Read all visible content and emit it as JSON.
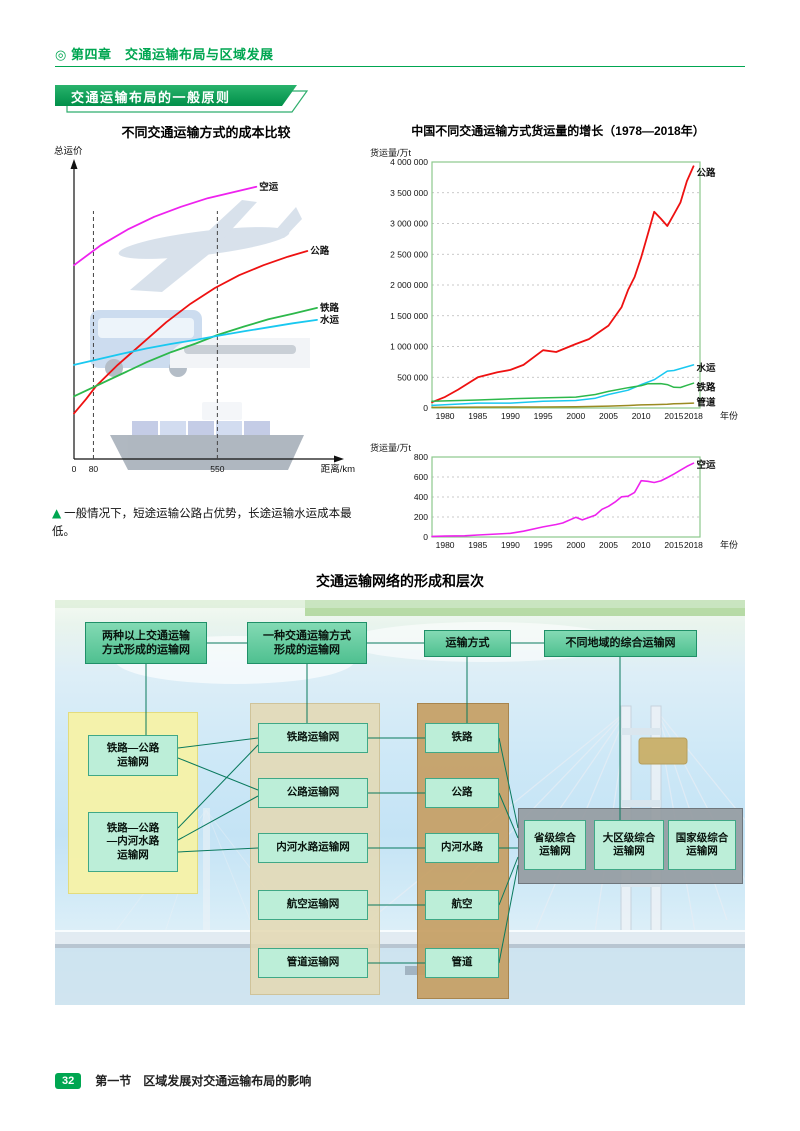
{
  "header": {
    "chapter": "◎ 第四章　交通运输布局与区域发展",
    "banner": "交通运输布局的一般原则"
  },
  "footer": {
    "page_number": "32",
    "text": "第一节　区域发展对交通运输布局的影响"
  },
  "colors": {
    "theme_green": "#00a651",
    "air": "#ee22ee",
    "road": "#ee1111",
    "rail": "#2db84b",
    "water": "#19c8f0",
    "pipeline": "#9b8b22"
  },
  "chart_data": [
    {
      "id": "cost_comparison",
      "type": "line",
      "title": "不同交通运输方式的成本比较",
      "ylabel": "总运价",
      "xlabel": "距离/km",
      "xlim": [
        0,
        100
      ],
      "ylim": [
        0,
        100
      ],
      "axes": "arrow",
      "x_ticks": [
        {
          "value": 0,
          "label": "0"
        },
        {
          "value": 8,
          "label": "80"
        },
        {
          "value": 59,
          "label": "550"
        }
      ],
      "dashed_x": [
        {
          "x": 8,
          "top": 87
        },
        {
          "x": 59,
          "top": 87
        }
      ],
      "series": [
        {
          "name": "空运",
          "color": "#ee22ee",
          "width": 1.8,
          "points": [
            [
              0,
              68
            ],
            [
              11,
              75
            ],
            [
              22,
              80.5
            ],
            [
              33,
              85
            ],
            [
              44,
              88.5
            ],
            [
              55,
              91.5
            ],
            [
              65,
              93.5
            ],
            [
              75,
              95.5
            ]
          ]
        },
        {
          "name": "公路",
          "color": "#ee1111",
          "width": 1.8,
          "points": [
            [
              0,
              16
            ],
            [
              5,
              21
            ],
            [
              9,
              25.5
            ],
            [
              18,
              33
            ],
            [
              28,
              40.5
            ],
            [
              38,
              48
            ],
            [
              48,
              54.5
            ],
            [
              58,
              60
            ],
            [
              68,
              64.5
            ],
            [
              78,
              68
            ],
            [
              88,
              71
            ],
            [
              96,
              73
            ]
          ]
        },
        {
          "name": "铁路",
          "color": "#2db84b",
          "width": 1.8,
          "points": [
            [
              0,
              22
            ],
            [
              10,
              26
            ],
            [
              20,
              30
            ],
            [
              30,
              34
            ],
            [
              40,
              37.5
            ],
            [
              50,
              40.5
            ],
            [
              59,
              43.5
            ],
            [
              70,
              46.5
            ],
            [
              80,
              49
            ],
            [
              90,
              51
            ],
            [
              100,
              53
            ]
          ]
        },
        {
          "name": "水运",
          "color": "#19c8f0",
          "width": 1.8,
          "points": [
            [
              0,
              33
            ],
            [
              10,
              35
            ],
            [
              20,
              37
            ],
            [
              30,
              38.8
            ],
            [
              40,
              40.4
            ],
            [
              50,
              41.8
            ],
            [
              59,
              43.2
            ],
            [
              70,
              44.8
            ],
            [
              80,
              46.2
            ],
            [
              90,
              47.6
            ],
            [
              100,
              48.8
            ]
          ]
        }
      ],
      "note_marker": "▲",
      "note": "一般情况下，短途运输公路占优势，长途运输水运成本最低。"
    },
    {
      "id": "freight_growth",
      "type": "line",
      "title": "中国不同交通运输方式货运量的增长（1978—2018年）",
      "ylabel": "货运量/万t",
      "xlabel": "年份",
      "xlim": [
        1978,
        2019
      ],
      "ylim": [
        0,
        4000000
      ],
      "frame": true,
      "grid": "dotted-horizontal",
      "y_ticks": [
        {
          "value": 4000000,
          "label": "4 000 000"
        },
        {
          "value": 3500000,
          "label": "3 500 000"
        },
        {
          "value": 3000000,
          "label": "3 000 000"
        },
        {
          "value": 2500000,
          "label": "2 500 000"
        },
        {
          "value": 2000000,
          "label": "2 000 000"
        },
        {
          "value": 1500000,
          "label": "1 500 000"
        },
        {
          "value": 1000000,
          "label": "1 000 000"
        },
        {
          "value": 500000,
          "label": "500 000"
        },
        {
          "value": 0,
          "label": "0"
        }
      ],
      "x_ticks": [
        {
          "value": 1980,
          "label": "1980"
        },
        {
          "value": 1985,
          "label": "1985"
        },
        {
          "value": 1990,
          "label": "1990"
        },
        {
          "value": 1995,
          "label": "1995"
        },
        {
          "value": 2000,
          "label": "2000"
        },
        {
          "value": 2005,
          "label": "2005"
        },
        {
          "value": 2010,
          "label": "2010"
        },
        {
          "value": 2015,
          "label": "2015"
        },
        {
          "value": 2018,
          "label": "2018"
        }
      ],
      "series": [
        {
          "name": "公路",
          "color": "#ee1111",
          "width": 1.8,
          "label_y": 3820000,
          "points": [
            [
              1978,
              95000
            ],
            [
              1980,
              180000
            ],
            [
              1982,
              300000
            ],
            [
              1985,
              500000
            ],
            [
              1988,
              580000
            ],
            [
              1990,
              620000
            ],
            [
              1992,
              700000
            ],
            [
              1995,
              940000
            ],
            [
              1997,
              910000
            ],
            [
              2000,
              1040000
            ],
            [
              2002,
              1120000
            ],
            [
              2005,
              1340000
            ],
            [
              2007,
              1640000
            ],
            [
              2008,
              1920000
            ],
            [
              2009,
              2130000
            ],
            [
              2010,
              2450000
            ],
            [
              2011,
              2820000
            ],
            [
              2012,
              3190000
            ],
            [
              2013,
              3080000
            ],
            [
              2014,
              2960000
            ],
            [
              2015,
              3150000
            ],
            [
              2016,
              3340000
            ],
            [
              2017,
              3690000
            ],
            [
              2018,
              3930000
            ]
          ]
        },
        {
          "name": "水运",
          "color": "#19c8f0",
          "width": 1.5,
          "label_y": 650000,
          "points": [
            [
              1978,
              43000
            ],
            [
              1985,
              80000
            ],
            [
              1990,
              80000
            ],
            [
              1995,
              110000
            ],
            [
              2000,
              122000
            ],
            [
              2003,
              160000
            ],
            [
              2005,
              220000
            ],
            [
              2008,
              290000
            ],
            [
              2010,
              380000
            ],
            [
              2012,
              460000
            ],
            [
              2014,
              600000
            ],
            [
              2015,
              610000
            ],
            [
              2016,
              640000
            ],
            [
              2018,
              700000
            ]
          ]
        },
        {
          "name": "铁路",
          "color": "#2db84b",
          "width": 1.5,
          "label_y": 330000,
          "points": [
            [
              1978,
              110000
            ],
            [
              1985,
              130000
            ],
            [
              1990,
              150000
            ],
            [
              1995,
              165000
            ],
            [
              2000,
              178000
            ],
            [
              2003,
              220000
            ],
            [
              2005,
              270000
            ],
            [
              2008,
              330000
            ],
            [
              2010,
              364000
            ],
            [
              2011,
              393000
            ],
            [
              2013,
              397000
            ],
            [
              2014,
              381000
            ],
            [
              2015,
              336000
            ],
            [
              2016,
              333000
            ],
            [
              2017,
              369000
            ],
            [
              2018,
              403000
            ]
          ]
        },
        {
          "name": "管道",
          "color": "#9b8b22",
          "width": 1.5,
          "label_y": 90000,
          "points": [
            [
              1978,
              10000
            ],
            [
              1985,
              14000
            ],
            [
              1990,
              16000
            ],
            [
              1995,
              17000
            ],
            [
              2000,
              19000
            ],
            [
              2005,
              31000
            ],
            [
              2008,
              40000
            ],
            [
              2010,
              50000
            ],
            [
              2012,
              55000
            ],
            [
              2014,
              60000
            ],
            [
              2015,
              68000
            ],
            [
              2016,
              71000
            ],
            [
              2018,
              80000
            ]
          ]
        }
      ]
    },
    {
      "id": "air_growth",
      "type": "line",
      "ylabel": "货运量/万t",
      "xlabel": "年份",
      "xlim": [
        1978,
        2019
      ],
      "ylim": [
        0,
        800
      ],
      "frame": true,
      "grid": "dotted-horizontal",
      "y_ticks": [
        {
          "value": 800,
          "label": "800"
        },
        {
          "value": 600,
          "label": "600"
        },
        {
          "value": 400,
          "label": "400"
        },
        {
          "value": 200,
          "label": "200"
        },
        {
          "value": 0,
          "label": "0"
        }
      ],
      "x_ticks": [
        {
          "value": 1980,
          "label": "1980"
        },
        {
          "value": 1985,
          "label": "1985"
        },
        {
          "value": 1990,
          "label": "1990"
        },
        {
          "value": 1995,
          "label": "1995"
        },
        {
          "value": 2000,
          "label": "2000"
        },
        {
          "value": 2005,
          "label": "2005"
        },
        {
          "value": 2010,
          "label": "2010"
        },
        {
          "value": 2015,
          "label": "2015"
        },
        {
          "value": 2018,
          "label": "2018"
        }
      ],
      "series": [
        {
          "name": "空运",
          "color": "#ee22ee",
          "width": 1.6,
          "label_y": 720,
          "points": [
            [
              1978,
              6
            ],
            [
              1980,
              9
            ],
            [
              1983,
              12
            ],
            [
              1985,
              20
            ],
            [
              1988,
              30
            ],
            [
              1990,
              37
            ],
            [
              1992,
              58
            ],
            [
              1995,
              101
            ],
            [
              1997,
              125
            ],
            [
              1998,
              140
            ],
            [
              2000,
              197
            ],
            [
              2001,
              171
            ],
            [
              2003,
              219
            ],
            [
              2004,
              277
            ],
            [
              2005,
              307
            ],
            [
              2006,
              349
            ],
            [
              2007,
              402
            ],
            [
              2008,
              408
            ],
            [
              2009,
              446
            ],
            [
              2010,
              563
            ],
            [
              2011,
              557
            ],
            [
              2012,
              545
            ],
            [
              2013,
              561
            ],
            [
              2014,
              594
            ],
            [
              2015,
              629
            ],
            [
              2016,
              668
            ],
            [
              2017,
              706
            ],
            [
              2018,
              738
            ]
          ]
        }
      ]
    }
  ],
  "diagram": {
    "title": "交通运输网络的形成和层次",
    "headers": {
      "multi_mode": "两种以上交通运输\n方式形成的运输网",
      "single_mode": "一种交通运输方式\n形成的运输网",
      "mode": "运输方式",
      "regional": "不同地域的综合运输网"
    },
    "multi_mode_networks": [
      "铁路—公路\n运输网",
      "铁路—公路\n—内河水路\n运输网"
    ],
    "single_mode_networks": [
      "铁路运输网",
      "公路运输网",
      "内河水路运输网",
      "航空运输网",
      "管道运输网"
    ],
    "modes": [
      "铁路",
      "公路",
      "内河水路",
      "航空",
      "管道"
    ],
    "regional_networks": [
      "省级综合\n运输网",
      "大区级综合\n运输网",
      "国家级综合\n运输网"
    ]
  }
}
